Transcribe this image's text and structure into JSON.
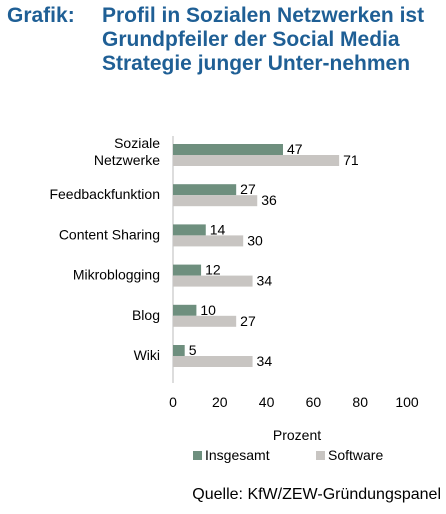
{
  "title": {
    "label": "Grafik:",
    "text": "Profil in Sozialen Netzwerken ist Grundpfeiler der Social Media Strategie junger Unter-nehmen"
  },
  "source": "Quelle: KfW/ZEW-Gründungspanel",
  "chart_data": {
    "type": "bar",
    "orientation": "horizontal",
    "categories": [
      "Soziale Netzwerke",
      "Feedbackfunktion",
      "Content Sharing",
      "Mikroblogging",
      "Blog",
      "Wiki"
    ],
    "series": [
      {
        "name": "Insgesamt",
        "color": "#6e8f7e",
        "values": [
          47,
          27,
          14,
          12,
          10,
          5
        ]
      },
      {
        "name": "Software",
        "color": "#c8c5c2",
        "values": [
          71,
          36,
          30,
          34,
          27,
          34
        ]
      }
    ],
    "xlabel": "Prozent",
    "xlim": [
      0,
      100
    ],
    "xticks": [
      0,
      20,
      40,
      60,
      80,
      100
    ],
    "grid": false,
    "legend": "bottom"
  }
}
